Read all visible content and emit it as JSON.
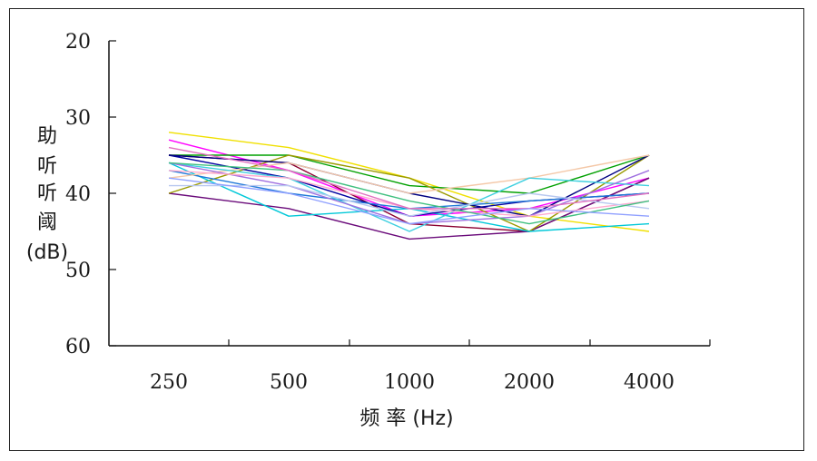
{
  "chart_data": {
    "type": "line",
    "categories": [
      "250",
      "500",
      "1000",
      "2000",
      "4000"
    ],
    "xlabel": "频 率 (Hz)",
    "ylabel_lines": [
      "助",
      "听",
      "听",
      "阈",
      "(dB)"
    ],
    "ylim": [
      60,
      20
    ],
    "yticks": [
      20,
      30,
      40,
      50,
      60
    ],
    "y_inverted": true,
    "grid": false,
    "series": [
      {
        "color": "#f0e000",
        "values": [
          32,
          34,
          38,
          43,
          45
        ]
      },
      {
        "color": "#ff00ff",
        "values": [
          33,
          37,
          43,
          42,
          38
        ]
      },
      {
        "color": "#00a000",
        "values": [
          35,
          35,
          39,
          40,
          35
        ]
      },
      {
        "color": "#8b0030",
        "values": [
          35,
          36,
          44,
          45,
          38
        ]
      },
      {
        "color": "#6a0a7a",
        "values": [
          40,
          42,
          46,
          45,
          38
        ]
      },
      {
        "color": "#9a9a00",
        "values": [
          40,
          35,
          38,
          45,
          35
        ]
      },
      {
        "color": "#00c8d8",
        "values": [
          36,
          43,
          42,
          45,
          44
        ]
      },
      {
        "color": "#0000a0",
        "values": [
          35,
          38,
          43,
          41,
          40
        ]
      },
      {
        "color": "#000080",
        "values": [
          35,
          36,
          40,
          43,
          35
        ]
      },
      {
        "color": "#1e78d8",
        "values": [
          37,
          40,
          42,
          41,
          40
        ]
      },
      {
        "color": "#f4c8a8",
        "values": [
          38,
          36,
          40,
          38,
          35
        ]
      },
      {
        "color": "#40d0e0",
        "values": [
          36,
          38,
          45,
          38,
          39
        ]
      },
      {
        "color": "#a070e0",
        "values": [
          36,
          39,
          44,
          43,
          37
        ]
      },
      {
        "color": "#ffaad0",
        "values": [
          37,
          38,
          42,
          43,
          41
        ]
      },
      {
        "color": "#b8c8f0",
        "values": [
          39,
          39,
          43,
          40,
          42
        ]
      },
      {
        "color": "#40c080",
        "values": [
          36,
          37,
          41,
          44,
          41
        ]
      },
      {
        "color": "#e070c0",
        "values": [
          34,
          37,
          42,
          42,
          40
        ]
      },
      {
        "color": "#90a0ff",
        "values": [
          38,
          40,
          44,
          42,
          43
        ]
      }
    ]
  }
}
